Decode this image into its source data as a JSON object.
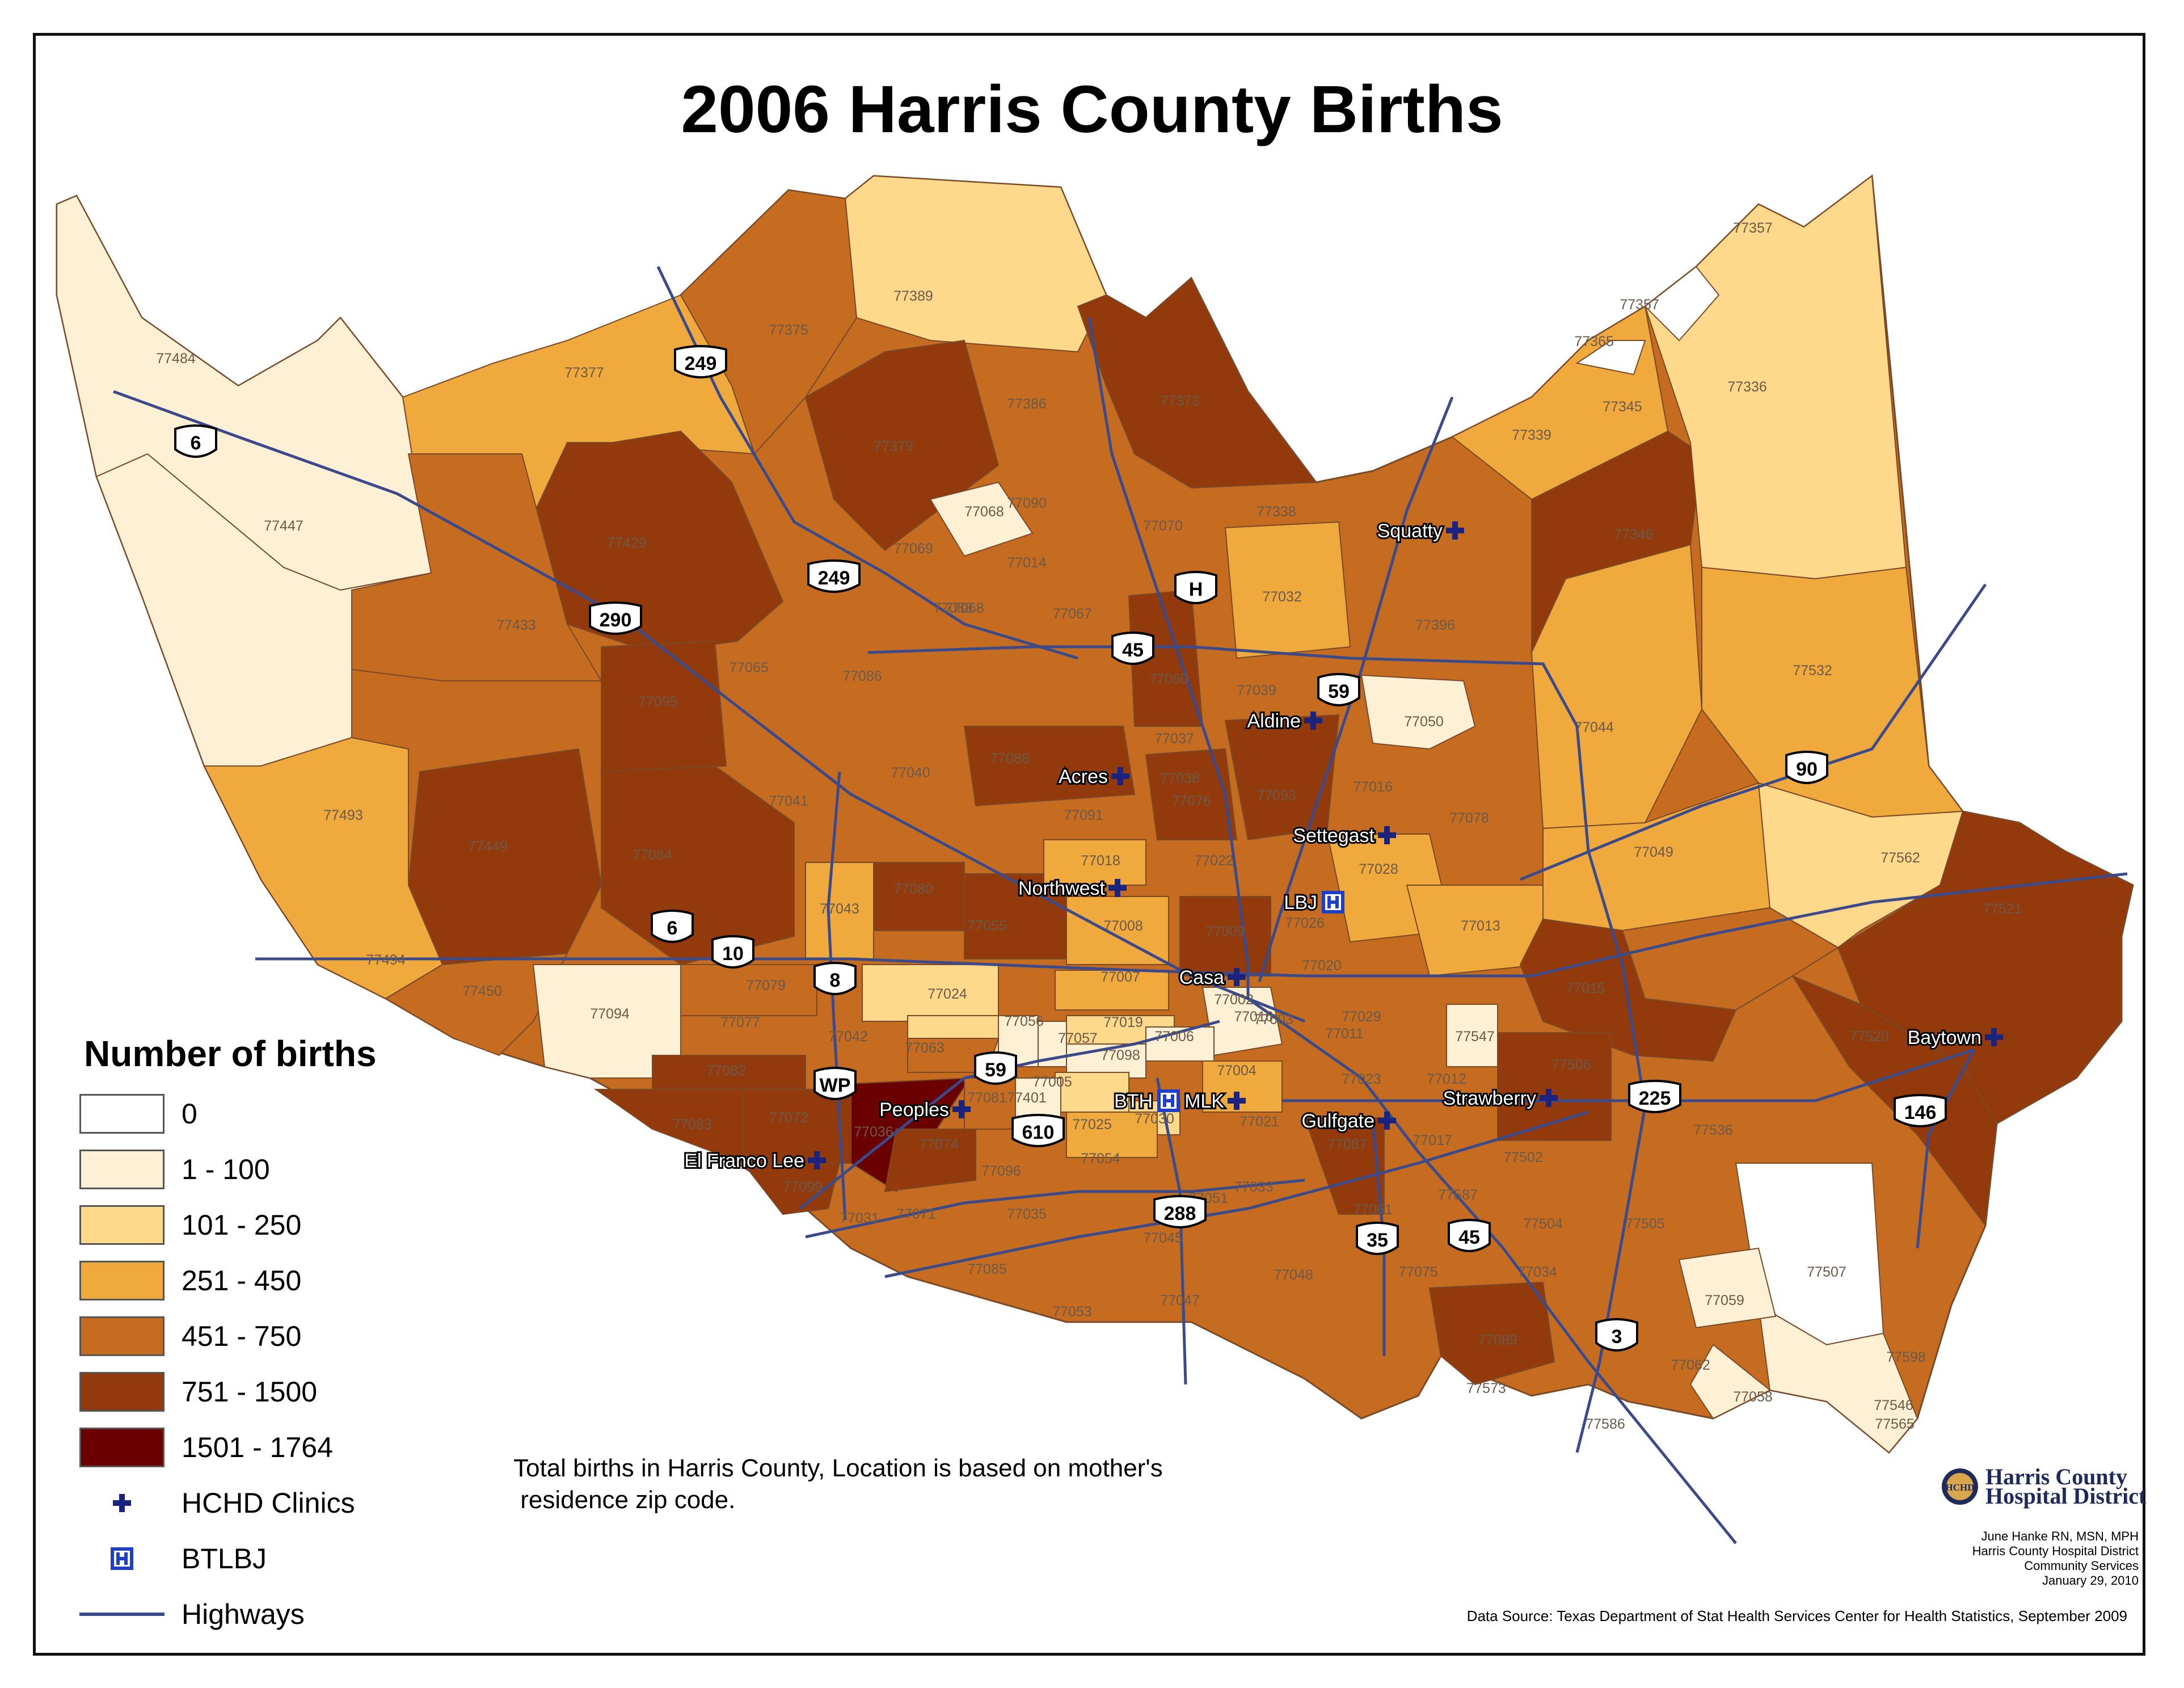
{
  "title": "2006 Harris County Births",
  "legend": {
    "title": "Number of births",
    "classes": [
      {
        "label": "0",
        "color": "#ffffff"
      },
      {
        "label": "1 - 100",
        "color": "#fef0d4"
      },
      {
        "label": "101 - 250",
        "color": "#fed98b"
      },
      {
        "label": "251 - 450",
        "color": "#f0a93c"
      },
      {
        "label": "451 - 750",
        "color": "#c56c20"
      },
      {
        "label": "751 - 1500",
        "color": "#933a0c"
      },
      {
        "label": "1501 - 1764",
        "color": "#6a0000"
      }
    ],
    "symbols": [
      {
        "label": "HCHD Clinics",
        "icon": "cross-icon",
        "color": "#1a237e"
      },
      {
        "label": "BTLBJ",
        "icon": "hospital-h-icon",
        "color": "#1f3fc8"
      },
      {
        "label": "Highways",
        "icon": "line-icon",
        "color": "#3b4a8a"
      }
    ]
  },
  "note": {
    "line1": "Total births in Harris County, Location is based on mother's",
    "line2": " residence zip code."
  },
  "logo": {
    "line1": "Harris County",
    "line2": "Hospital District",
    "badge": "HCHD"
  },
  "credits": [
    "June Hanke RN, MSN, MPH",
    "Harris County Hospital District",
    "Community Services",
    "January 29, 2010"
  ],
  "source": "Data Source: Texas Department of Stat Health Services Center for Health Statistics, September 2009",
  "highway_shields": [
    "249",
    "6",
    "290",
    "249",
    "H",
    "45",
    "59",
    "90",
    "6",
    "10",
    "8",
    "WP",
    "59",
    "610",
    "288",
    "35",
    "45",
    "225",
    "146",
    "3"
  ],
  "clinics": [
    "Squatty",
    "Aldine",
    "Acres",
    "Settegast",
    "Northwest",
    "LBJ",
    "Casa",
    "Peoples",
    "BTH",
    "MLK",
    "Gulfgate",
    "Strawberry",
    "Baytown",
    "El Franco Lee"
  ],
  "zip_labels": [
    "77357",
    "77357",
    "77365",
    "77345",
    "77336",
    "77389",
    "77375",
    "77377",
    "77484",
    "77379",
    "77386",
    "77373",
    "77339",
    "77338",
    "77346",
    "77068",
    "77069",
    "77090",
    "77070",
    "77014",
    "77068",
    "77032",
    "77429",
    "77447",
    "77433",
    "77065",
    "77088",
    "77067",
    "77060",
    "77396",
    "77095",
    "77086",
    "77037",
    "77039",
    "77050",
    "77532",
    "77044",
    "77088",
    "77038",
    "77093",
    "77016",
    "77084",
    "77449",
    "77493",
    "77041",
    "77040",
    "77091",
    "77076",
    "77078",
    "77049",
    "77562",
    "77080",
    "77018",
    "77022",
    "77026",
    "77028",
    "77013",
    "77521",
    "77043",
    "77055",
    "77008",
    "77009",
    "77020",
    "77029",
    "77494",
    "77450",
    "77094",
    "77079",
    "77024",
    "77007",
    "77002",
    "77010",
    "77003",
    "77011",
    "77547",
    "77015",
    "77520",
    "77077",
    "77042",
    "77056",
    "77019",
    "77006",
    "77004",
    "77023",
    "77012",
    "77082",
    "77063",
    "77057",
    "77098",
    "77005",
    "77030",
    "77021",
    "77506",
    "77083",
    "77072",
    "77036",
    "77081",
    "77401",
    "77025",
    "77087",
    "77017",
    "77502",
    "77536",
    "77099",
    "77074",
    "77096",
    "77054",
    "77033",
    "77051",
    "77061",
    "77587",
    "77504",
    "77505",
    "77031",
    "77071",
    "77035",
    "77045",
    "77085",
    "77053",
    "77047",
    "77048",
    "77075",
    "77034",
    "77507",
    "77059",
    "77089",
    "77062",
    "77058",
    "77598",
    "77586",
    "77546",
    "77565",
    "77573",
    "77581"
  ]
}
